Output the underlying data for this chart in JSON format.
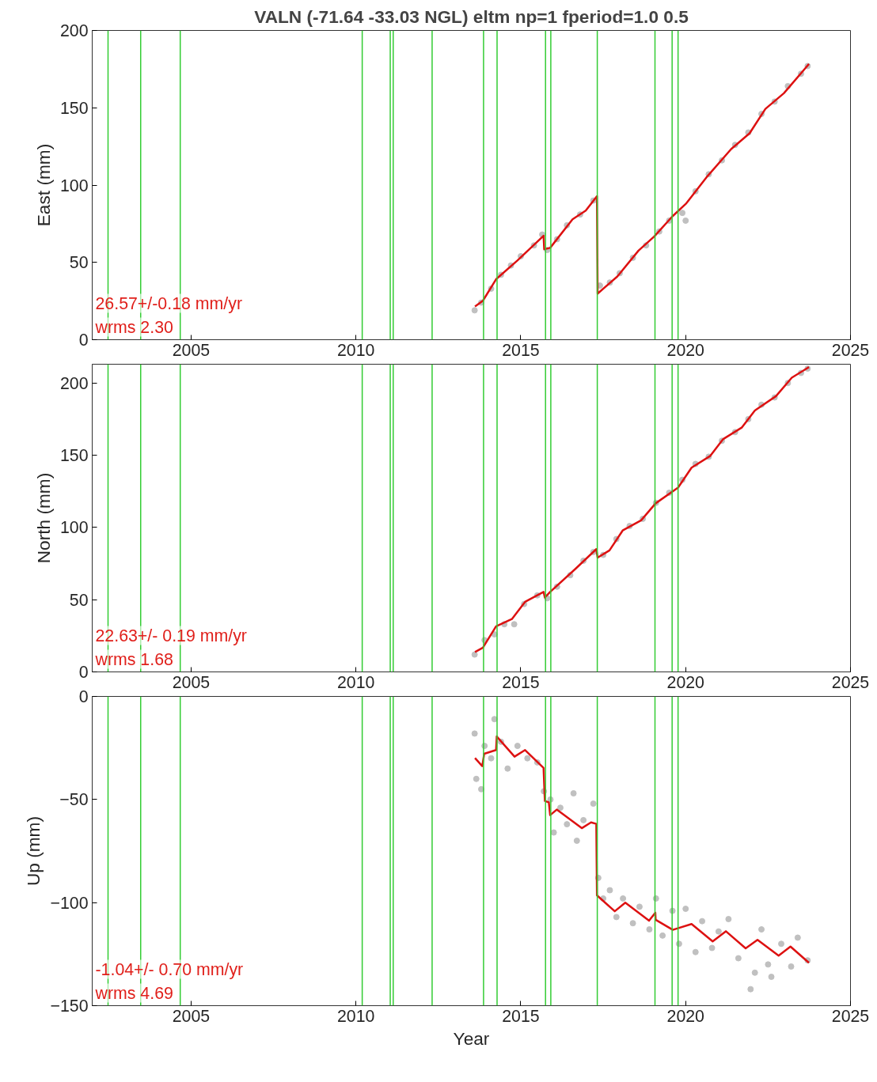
{
  "chart_data": [
    {
      "type": "line",
      "title": "VALN (-71.64 -33.03 NGL) eltm np=1 fperiod=1.0 0.5",
      "ylabel": "East (mm)",
      "xlim": [
        2002,
        2025
      ],
      "xticks": [
        2005,
        2010,
        2015,
        2020,
        2025
      ],
      "ylim": [
        0,
        200
      ],
      "yticks": [
        0,
        50,
        100,
        150,
        200
      ],
      "grid": false,
      "annotations": [
        "26.57+/-0.18 mm/yr",
        "wrms 2.30"
      ],
      "ref_lines": [
        {
          "axis": "x",
          "value": 2002.48,
          "color": "#33cc33"
        },
        {
          "axis": "x",
          "value": 2003.47,
          "color": "#33cc33"
        },
        {
          "axis": "x",
          "value": 2004.67,
          "color": "#33cc33"
        },
        {
          "axis": "x",
          "value": 2010.19,
          "color": "#33cc33"
        },
        {
          "axis": "x",
          "value": 2011.04,
          "color": "#33cc33"
        },
        {
          "axis": "x",
          "value": 2011.13,
          "color": "#33cc33"
        },
        {
          "axis": "x",
          "value": 2012.31,
          "color": "#33cc33"
        },
        {
          "axis": "x",
          "value": 2013.87,
          "color": "#33cc33"
        },
        {
          "axis": "x",
          "value": 2014.28,
          "color": "#33cc33"
        },
        {
          "axis": "x",
          "value": 2015.75,
          "color": "#33cc33"
        },
        {
          "axis": "x",
          "value": 2015.91,
          "color": "#33cc33"
        },
        {
          "axis": "x",
          "value": 2017.32,
          "color": "#33cc33"
        },
        {
          "axis": "x",
          "value": 2019.07,
          "color": "#33cc33"
        },
        {
          "axis": "x",
          "value": 2019.59,
          "color": "#33cc33"
        },
        {
          "axis": "x",
          "value": 2019.77,
          "color": "#33cc33"
        }
      ],
      "series": [
        {
          "type": "scatter",
          "marker": "circle",
          "color": "#c0c0c0",
          "x": [
            2013.6,
            2013.8,
            2014.1,
            2014.4,
            2014.7,
            2015.0,
            2015.4,
            2015.65,
            2015.8,
            2016.1,
            2016.4,
            2016.8,
            2017.2,
            2017.4,
            2017.7,
            2018.0,
            2018.4,
            2018.8,
            2019.2,
            2019.5,
            2019.9,
            2020.0,
            2020.3,
            2020.7,
            2021.1,
            2021.5,
            2021.9,
            2022.3,
            2022.7,
            2023.1,
            2023.5,
            2023.7
          ],
          "values": [
            19,
            24,
            33,
            42,
            48,
            54,
            61,
            68,
            58,
            65,
            74,
            81,
            90,
            35,
            37,
            43,
            53,
            61,
            70,
            77,
            82,
            77,
            96,
            107,
            116,
            126,
            134,
            146,
            154,
            164,
            172,
            177
          ]
        },
        {
          "color": "#dd1111",
          "x": [
            2013.61,
            2013.85,
            2014.25,
            2014.89,
            2015.69,
            2015.71,
            2015.89,
            2016.57,
            2016.97,
            2017.31,
            2017.33,
            2017.93,
            2018.57,
            2019.05,
            2019.6,
            2020.02,
            2020.66,
            2021.38,
            2021.94,
            2022.42,
            2022.98,
            2023.74
          ],
          "values": [
            21.5,
            25.2,
            39.1,
            51.1,
            67.2,
            58.5,
            59.4,
            77.9,
            83.5,
            92.8,
            29.8,
            40.9,
            57.6,
            66.8,
            79.8,
            88.2,
            105.7,
            123.3,
            133.5,
            149.3,
            159.4,
            178.3
          ]
        }
      ]
    },
    {
      "type": "line",
      "ylabel": "North (mm)",
      "xlim": [
        2002,
        2025
      ],
      "xticks": [
        2005,
        2010,
        2015,
        2020,
        2025
      ],
      "ylim": [
        0,
        213
      ],
      "yticks": [
        0,
        50,
        100,
        150,
        200
      ],
      "grid": false,
      "annotations": [
        "22.63+/- 0.19 mm/yr",
        "wrms 1.68"
      ],
      "ref_lines": [
        {
          "axis": "x",
          "value": 2002.48,
          "color": "#33cc33"
        },
        {
          "axis": "x",
          "value": 2003.47,
          "color": "#33cc33"
        },
        {
          "axis": "x",
          "value": 2004.67,
          "color": "#33cc33"
        },
        {
          "axis": "x",
          "value": 2010.19,
          "color": "#33cc33"
        },
        {
          "axis": "x",
          "value": 2011.04,
          "color": "#33cc33"
        },
        {
          "axis": "x",
          "value": 2011.13,
          "color": "#33cc33"
        },
        {
          "axis": "x",
          "value": 2012.31,
          "color": "#33cc33"
        },
        {
          "axis": "x",
          "value": 2013.87,
          "color": "#33cc33"
        },
        {
          "axis": "x",
          "value": 2014.28,
          "color": "#33cc33"
        },
        {
          "axis": "x",
          "value": 2015.75,
          "color": "#33cc33"
        },
        {
          "axis": "x",
          "value": 2015.91,
          "color": "#33cc33"
        },
        {
          "axis": "x",
          "value": 2017.32,
          "color": "#33cc33"
        },
        {
          "axis": "x",
          "value": 2019.07,
          "color": "#33cc33"
        },
        {
          "axis": "x",
          "value": 2019.59,
          "color": "#33cc33"
        },
        {
          "axis": "x",
          "value": 2019.77,
          "color": "#33cc33"
        }
      ],
      "series": [
        {
          "type": "scatter",
          "marker": "circle",
          "color": "#c0c0c0",
          "x": [
            2013.6,
            2013.9,
            2014.2,
            2014.5,
            2014.8,
            2015.1,
            2015.5,
            2015.8,
            2016.1,
            2016.5,
            2016.9,
            2017.2,
            2017.5,
            2017.9,
            2018.3,
            2018.7,
            2019.1,
            2019.5,
            2019.9,
            2020.3,
            2020.7,
            2021.1,
            2021.5,
            2021.9,
            2022.3,
            2022.7,
            2023.1,
            2023.5,
            2023.7
          ],
          "values": [
            12,
            22,
            26,
            33,
            33,
            47,
            53,
            51,
            59,
            67,
            77,
            83,
            81,
            92,
            101,
            106,
            117,
            124,
            133,
            144,
            149,
            160,
            166,
            175,
            185,
            190,
            200,
            207,
            210
          ]
        },
        {
          "color": "#dd1111",
          "x": [
            2013.61,
            2013.85,
            2014.25,
            2014.73,
            2015.13,
            2015.69,
            2015.73,
            2015.89,
            2016.65,
            2017.29,
            2017.33,
            2017.69,
            2018.09,
            2018.65,
            2019.09,
            2019.77,
            2020.18,
            2020.74,
            2021.14,
            2021.7,
            2022.1,
            2022.74,
            2023.22,
            2023.74
          ],
          "values": [
            13.8,
            16.8,
            31.6,
            36.6,
            48.5,
            55.4,
            51.5,
            55.4,
            71.2,
            85.0,
            79.1,
            84.1,
            97.9,
            104.9,
            116.7,
            127.6,
            141.4,
            149.4,
            161.2,
            169.1,
            181.0,
            190.9,
            203.7,
            211
          ]
        }
      ]
    },
    {
      "type": "line",
      "xlabel": "Year",
      "ylabel": "Up (mm)",
      "xlim": [
        2002,
        2025
      ],
      "xticks": [
        2005,
        2010,
        2015,
        2020,
        2025
      ],
      "ylim": [
        -150,
        0
      ],
      "yticks": [
        -150,
        -100,
        -50,
        0
      ],
      "grid": false,
      "annotations": [
        "-1.04+/- 0.70 mm/yr",
        "wrms 4.69"
      ],
      "ref_lines": [
        {
          "axis": "x",
          "value": 2002.48,
          "color": "#33cc33"
        },
        {
          "axis": "x",
          "value": 2003.47,
          "color": "#33cc33"
        },
        {
          "axis": "x",
          "value": 2004.67,
          "color": "#33cc33"
        },
        {
          "axis": "x",
          "value": 2010.19,
          "color": "#33cc33"
        },
        {
          "axis": "x",
          "value": 2011.04,
          "color": "#33cc33"
        },
        {
          "axis": "x",
          "value": 2011.13,
          "color": "#33cc33"
        },
        {
          "axis": "x",
          "value": 2012.31,
          "color": "#33cc33"
        },
        {
          "axis": "x",
          "value": 2013.87,
          "color": "#33cc33"
        },
        {
          "axis": "x",
          "value": 2014.28,
          "color": "#33cc33"
        },
        {
          "axis": "x",
          "value": 2015.75,
          "color": "#33cc33"
        },
        {
          "axis": "x",
          "value": 2015.91,
          "color": "#33cc33"
        },
        {
          "axis": "x",
          "value": 2017.32,
          "color": "#33cc33"
        },
        {
          "axis": "x",
          "value": 2019.07,
          "color": "#33cc33"
        },
        {
          "axis": "x",
          "value": 2019.59,
          "color": "#33cc33"
        },
        {
          "axis": "x",
          "value": 2019.77,
          "color": "#33cc33"
        }
      ],
      "series": [
        {
          "type": "scatter",
          "marker": "circle",
          "color": "#c0c0c0",
          "x": [
            2013.6,
            2013.65,
            2013.8,
            2013.9,
            2014.1,
            2014.2,
            2014.4,
            2014.6,
            2014.9,
            2015.2,
            2015.5,
            2015.7,
            2015.9,
            2016.0,
            2016.2,
            2016.4,
            2016.6,
            2016.7,
            2016.9,
            2017.2,
            2017.35,
            2017.5,
            2017.7,
            2017.9,
            2018.1,
            2018.4,
            2018.6,
            2018.9,
            2019.1,
            2019.3,
            2019.6,
            2019.8,
            2020.0,
            2020.3,
            2020.5,
            2020.8,
            2021.0,
            2021.3,
            2021.6,
            2021.97,
            2022.1,
            2022.3,
            2022.5,
            2022.6,
            2022.9,
            2023.2,
            2023.4,
            2023.7
          ],
          "values": [
            -18,
            -40,
            -45,
            -24,
            -30,
            -11,
            -22,
            -35,
            -24,
            -30,
            -32,
            -46,
            -50,
            -66,
            -54,
            -62,
            -47,
            -70,
            -60,
            -52,
            -88,
            -98,
            -94,
            -107,
            -98,
            -110,
            -102,
            -113,
            -98,
            -116,
            -104,
            -120,
            -103,
            -124,
            -109,
            -122,
            -114,
            -108,
            -127,
            -142,
            -134,
            -113,
            -130,
            -136,
            -120,
            -131,
            -117,
            -128
          ]
        },
        {
          "color": "#dd1111",
          "x": [
            2013.61,
            2013.83,
            2013.89,
            2014.25,
            2014.27,
            2014.81,
            2015.13,
            2015.69,
            2015.73,
            2015.85,
            2015.89,
            2016.09,
            2016.85,
            2017.13,
            2017.29,
            2017.31,
            2017.85,
            2018.17,
            2018.89,
            2019.08,
            2019.09,
            2019.61,
            2020.18,
            2020.82,
            2021.22,
            2021.82,
            2022.18,
            2022.82,
            2023.18,
            2023.74
          ],
          "values": [
            -29.9,
            -33.8,
            -27.8,
            -26.0,
            -19.4,
            -29.2,
            -26.0,
            -34.7,
            -50.7,
            -51.4,
            -57.6,
            -54.9,
            -63.9,
            -61.1,
            -61.8,
            -96.5,
            -104.2,
            -100.0,
            -108.8,
            -104.9,
            -108.3,
            -113.2,
            -110.4,
            -118.8,
            -113.9,
            -122.2,
            -118.1,
            -125.7,
            -121.3,
            -129.2
          ]
        }
      ]
    }
  ]
}
